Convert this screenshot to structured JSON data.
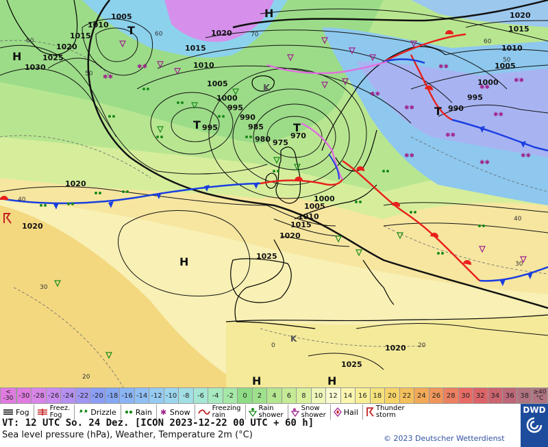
{
  "map": {
    "pressure_labels": [
      "1005",
      "1010",
      "1015",
      "1020",
      "1025",
      "1030",
      "1020",
      "1015",
      "1010",
      "1005",
      "1000",
      "995",
      "990",
      "985",
      "980",
      "975",
      "970",
      "995",
      "1000",
      "1005",
      "1010",
      "1015",
      "1020",
      "1025",
      "1020",
      "1025",
      "1020",
      "1020",
      "1015",
      "1010",
      "1005",
      "1000",
      "995",
      "990",
      "1020",
      "1015",
      "1010",
      "1005",
      "1000"
    ],
    "pressure_label_pos_note": "",
    "centers": [
      "H",
      "T",
      "H",
      "K",
      "T",
      "T",
      "T",
      "H",
      "H",
      "H",
      "K"
    ],
    "isotherm_labels": [
      "60",
      "60",
      "50",
      "70",
      "60",
      "50",
      "40",
      "30",
      "20",
      "40",
      "30",
      "20",
      "0"
    ],
    "colors": {
      "warm_front": "#e8201c",
      "cold_front": "#1a3ee0",
      "occlusion": "#e070e0",
      "isobar": "#111111",
      "rain": "#1a8a1a",
      "snow": "#a0208a"
    }
  },
  "colorbar": {
    "edge_low": [
      "<",
      "-30"
    ],
    "edge_high": [
      "≥40",
      "°C"
    ],
    "cells": [
      {
        "label": "-30",
        "color": "#e07be0"
      },
      {
        "label": "-28",
        "color": "#d885e8"
      },
      {
        "label": "-26",
        "color": "#c98cee"
      },
      {
        "label": "-24",
        "color": "#b590f0"
      },
      {
        "label": "-22",
        "color": "#a096f2"
      },
      {
        "label": "-20",
        "color": "#8c9ef4"
      },
      {
        "label": "-18",
        "color": "#86a8f4"
      },
      {
        "label": "-16",
        "color": "#8ab4f4"
      },
      {
        "label": "-14",
        "color": "#90c0f4"
      },
      {
        "label": "-12",
        "color": "#96ccf2"
      },
      {
        "label": "-10",
        "color": "#9cd6ee"
      },
      {
        "label": "-8",
        "color": "#a2dfe4"
      },
      {
        "label": "-6",
        "color": "#a6e6d4"
      },
      {
        "label": "-4",
        "color": "#a8eac0"
      },
      {
        "label": "-2",
        "color": "#a6e8a8"
      },
      {
        "label": "0",
        "color": "#8edc86"
      },
      {
        "label": "2",
        "color": "#9fe08c"
      },
      {
        "label": "4",
        "color": "#b4e690"
      },
      {
        "label": "6",
        "color": "#c6eb96"
      },
      {
        "label": "8",
        "color": "#d8f09c"
      },
      {
        "label": "10",
        "color": "#eef6ba"
      },
      {
        "label": "12",
        "color": "#fafad2"
      },
      {
        "label": "14",
        "color": "#faf6b0"
      },
      {
        "label": "16",
        "color": "#f8ee96"
      },
      {
        "label": "18",
        "color": "#f6e27c"
      },
      {
        "label": "20",
        "color": "#f6d468"
      },
      {
        "label": "22",
        "color": "#f4c05c"
      },
      {
        "label": "24",
        "color": "#f2aa58"
      },
      {
        "label": "26",
        "color": "#f0965a"
      },
      {
        "label": "28",
        "color": "#ec8060"
      },
      {
        "label": "30",
        "color": "#e86c66"
      },
      {
        "label": "32",
        "color": "#dc6468"
      },
      {
        "label": "34",
        "color": "#cc6470"
      },
      {
        "label": "36",
        "color": "#bc6878"
      },
      {
        "label": "38",
        "color": "#b07480"
      }
    ]
  },
  "legend": {
    "fog": "Fog",
    "freezing_fog_1": "Freez.",
    "freezing_fog_2": "Fog",
    "drizzle": "Drizzle",
    "rain": "Rain",
    "snow": "Snow",
    "freezing_rain_1": "Freezing",
    "freezing_rain_2": "rain",
    "rain_shower_1": "Rain",
    "rain_shower_2": "shower",
    "snow_shower_1": "Snow",
    "snow_shower_2": "shower",
    "hail": "Hail",
    "thunderstorm_1": "Thunder",
    "thunderstorm_2": "storm"
  },
  "footer": {
    "valid_time": "VT: 12 UTC So.  24 Dez. [ICON 2023-12-22  00 UTC + 60 h]",
    "description": "Sea level pressure (hPa), Weather, Temperature 2m (°C)",
    "copyright": "© 2023 Deutscher Wetterdienst",
    "logo_text": "DWD"
  }
}
